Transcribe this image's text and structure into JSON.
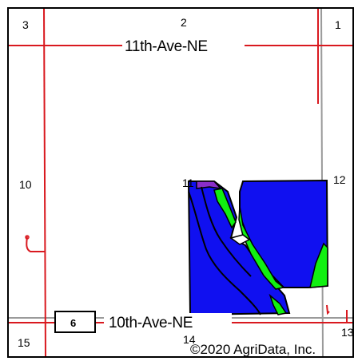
{
  "map": {
    "roads": {
      "north": "11th-Ave-NE",
      "south": "10th-Ave-NE"
    },
    "route_shield": "6",
    "section_numbers": {
      "top_left": "3",
      "top_center": "2",
      "top_right": "1",
      "mid_left": "10",
      "mid_field": "11",
      "mid_right": "12",
      "bottom_left": "15",
      "bottom_center": "14",
      "bottom_right": "13"
    },
    "copyright": "©2020 AgriData, Inc.",
    "colors": {
      "road": "#d9191f",
      "section_line": "#999999",
      "field_blue": "#1010f0",
      "field_green": "#11f011",
      "field_purple": "#8a2ec8",
      "outline": "#000000"
    }
  }
}
